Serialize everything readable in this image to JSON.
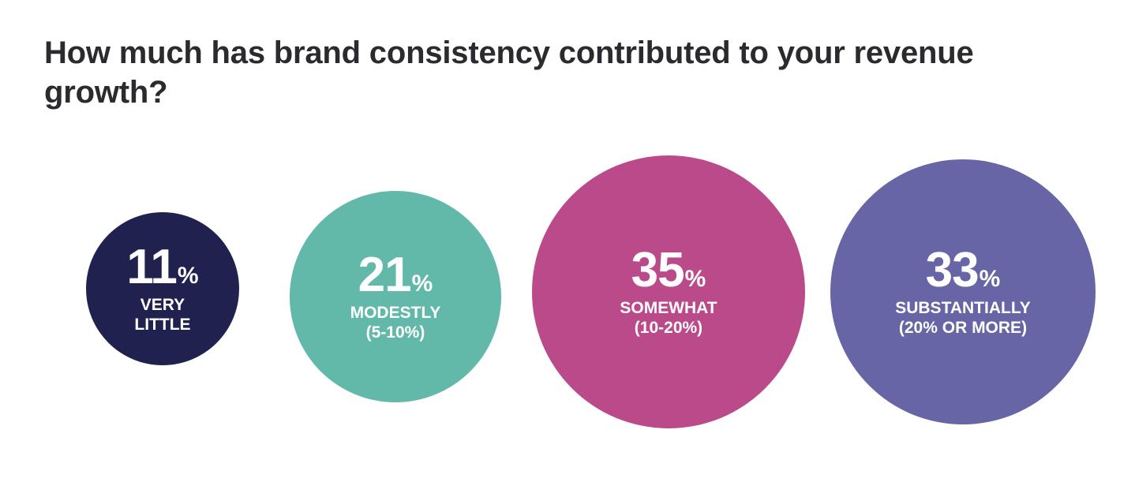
{
  "chart_data": {
    "type": "bubble",
    "title": "How much has brand consistency contributed to your revenue growth?",
    "unit": "%",
    "categories": [
      "VERY LITTLE",
      "MODESTLY (5-10%)",
      "SOMEWHAT (10-20%)",
      "SUBSTANTIALLY (20% OR MORE)"
    ],
    "values": [
      11,
      21,
      35,
      33
    ],
    "points": [
      {
        "value": 11,
        "label": "VERY\nLITTLE",
        "color": "#20214f"
      },
      {
        "value": 21,
        "label": "MODESTLY\n(5-10%)",
        "color": "#62b9a9"
      },
      {
        "value": 35,
        "label": "SOMEWHAT\n(10-20%)",
        "color": "#bb4a8b"
      },
      {
        "value": 33,
        "label": "SUBSTANTIALLY\n(20% OR MORE)",
        "color": "#6765a6"
      }
    ]
  }
}
